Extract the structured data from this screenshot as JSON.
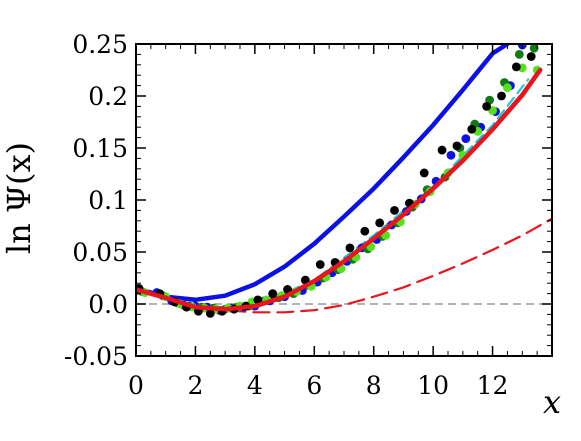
{
  "chart_data": {
    "type": "scatter",
    "title": "",
    "xlabel": "x",
    "ylabel": "ln Ψ(x)",
    "xlim": [
      0,
      14
    ],
    "ylim": [
      -0.05,
      0.25
    ],
    "grid": false,
    "legend": "none",
    "x_ticks": [
      0,
      2,
      4,
      6,
      8,
      10,
      12
    ],
    "x_tick_labels": [
      "0",
      "2",
      "4",
      "6",
      "8",
      "10",
      "12"
    ],
    "y_ticks": [
      -0.05,
      0.0,
      0.05,
      0.1,
      0.15,
      0.2,
      0.25
    ],
    "y_tick_labels": [
      "-0.05",
      "0.0",
      "0.05",
      "0.1",
      "0.15",
      "0.2",
      "0.25"
    ],
    "reference_line": {
      "y": 0.0,
      "color": "#999999",
      "style": "dashed"
    },
    "series": [
      {
        "kind": "line",
        "color": "#0a10e6",
        "style": "solid",
        "x": [
          0,
          1,
          2,
          3,
          4,
          5,
          6,
          7,
          8,
          9,
          10,
          11,
          12,
          12.5
        ],
        "y": [
          0.015,
          0.007,
          0.004,
          0.008,
          0.019,
          0.036,
          0.058,
          0.084,
          0.111,
          0.141,
          0.172,
          0.206,
          0.241,
          0.25
        ]
      },
      {
        "kind": "line",
        "color": "#e8141e",
        "style": "solid",
        "x": [
          0,
          1,
          2,
          3,
          4,
          5,
          6,
          7,
          8,
          9,
          10,
          11,
          12,
          13,
          13.6
        ],
        "y": [
          0.014,
          0.006,
          -0.003,
          -0.005,
          -0.002,
          0.007,
          0.022,
          0.041,
          0.063,
          0.086,
          0.111,
          0.138,
          0.168,
          0.201,
          0.225
        ]
      },
      {
        "kind": "line",
        "color": "#e8141e",
        "style": "dashed",
        "x": [
          0,
          1,
          2,
          3,
          4,
          5,
          6,
          7,
          8,
          9,
          10,
          11,
          12,
          13,
          14
        ],
        "y": [
          0.014,
          0.006,
          -0.002,
          -0.006,
          -0.008,
          -0.008,
          -0.006,
          -0.001,
          0.007,
          0.016,
          0.027,
          0.039,
          0.052,
          0.066,
          0.082
        ]
      },
      {
        "kind": "line",
        "color": "#20c8d8",
        "style": "dashed",
        "x": [
          0,
          2,
          4,
          6,
          8,
          10,
          12,
          13.2
        ],
        "y": [
          0.014,
          -0.004,
          -0.002,
          0.023,
          0.066,
          0.113,
          0.172,
          0.216
        ]
      },
      {
        "kind": "points",
        "color": "#0a10e6",
        "x": [
          0.0,
          0.7,
          1.2,
          1.6,
          2.0,
          2.4,
          2.8,
          3.2,
          3.6,
          4.0,
          4.5,
          5.0,
          5.6,
          6.1,
          6.6,
          7.1,
          7.6,
          8.1,
          8.6,
          9.1,
          9.6,
          10.1,
          10.6,
          11.1,
          11.6,
          12.1,
          12.6,
          13.0
        ],
        "y": [
          0.013,
          0.011,
          0.003,
          -0.001,
          -0.002,
          -0.003,
          -0.006,
          -0.004,
          -0.003,
          -0.002,
          0.003,
          0.007,
          0.013,
          0.021,
          0.03,
          0.041,
          0.054,
          0.062,
          0.076,
          0.089,
          0.101,
          0.118,
          0.143,
          0.159,
          0.17,
          0.185,
          0.21,
          0.249
        ]
      },
      {
        "kind": "points",
        "color": "#127a12",
        "x": [
          0.2,
          0.9,
          1.4,
          1.8,
          2.2,
          2.6,
          3.0,
          3.4,
          3.8,
          4.3,
          4.8,
          5.3,
          5.8,
          6.3,
          6.8,
          7.3,
          7.8,
          8.3,
          8.8,
          9.3,
          9.8,
          10.4,
          10.9,
          11.4,
          11.9,
          12.4,
          12.9,
          13.4
        ],
        "y": [
          0.012,
          0.008,
          0.001,
          -0.002,
          -0.003,
          -0.004,
          -0.005,
          -0.003,
          -0.002,
          0.003,
          0.006,
          0.01,
          0.018,
          0.025,
          0.033,
          0.043,
          0.053,
          0.065,
          0.078,
          0.093,
          0.11,
          0.122,
          0.15,
          0.173,
          0.196,
          0.213,
          0.24,
          0.246
        ]
      },
      {
        "kind": "points",
        "color": "#55e01e",
        "x": [
          0.3,
          1.0,
          1.5,
          1.9,
          2.3,
          2.7,
          3.1,
          3.5,
          3.9,
          4.4,
          4.9,
          5.4,
          5.9,
          6.4,
          6.9,
          7.4,
          7.9,
          8.4,
          8.9,
          9.4,
          9.9,
          10.5,
          11.0,
          11.5,
          12.0,
          12.5,
          13.0,
          13.5
        ],
        "y": [
          0.011,
          0.007,
          0.0,
          -0.003,
          -0.004,
          -0.005,
          -0.004,
          -0.002,
          0.002,
          0.004,
          0.008,
          0.012,
          0.017,
          0.026,
          0.034,
          0.045,
          0.055,
          0.066,
          0.079,
          0.096,
          0.108,
          0.126,
          0.143,
          0.166,
          0.186,
          0.208,
          0.227,
          0.225
        ]
      },
      {
        "kind": "points",
        "color": "#000000",
        "x": [
          0.1,
          0.8,
          1.3,
          1.7,
          2.1,
          2.5,
          2.9,
          3.3,
          3.7,
          4.1,
          4.6,
          5.1,
          5.7,
          6.2,
          6.7,
          7.2,
          7.7,
          8.2,
          8.7,
          9.2,
          9.7,
          10.3,
          10.8,
          11.3,
          11.8,
          12.3,
          12.8,
          13.3
        ],
        "y": [
          0.015,
          0.01,
          0.002,
          -0.003,
          -0.007,
          -0.009,
          -0.007,
          -0.005,
          -0.002,
          0.004,
          0.01,
          0.014,
          0.023,
          0.038,
          0.04,
          0.054,
          0.07,
          0.078,
          0.09,
          0.097,
          0.126,
          0.148,
          0.152,
          0.168,
          0.19,
          0.2,
          0.228,
          0.238
        ]
      }
    ]
  }
}
